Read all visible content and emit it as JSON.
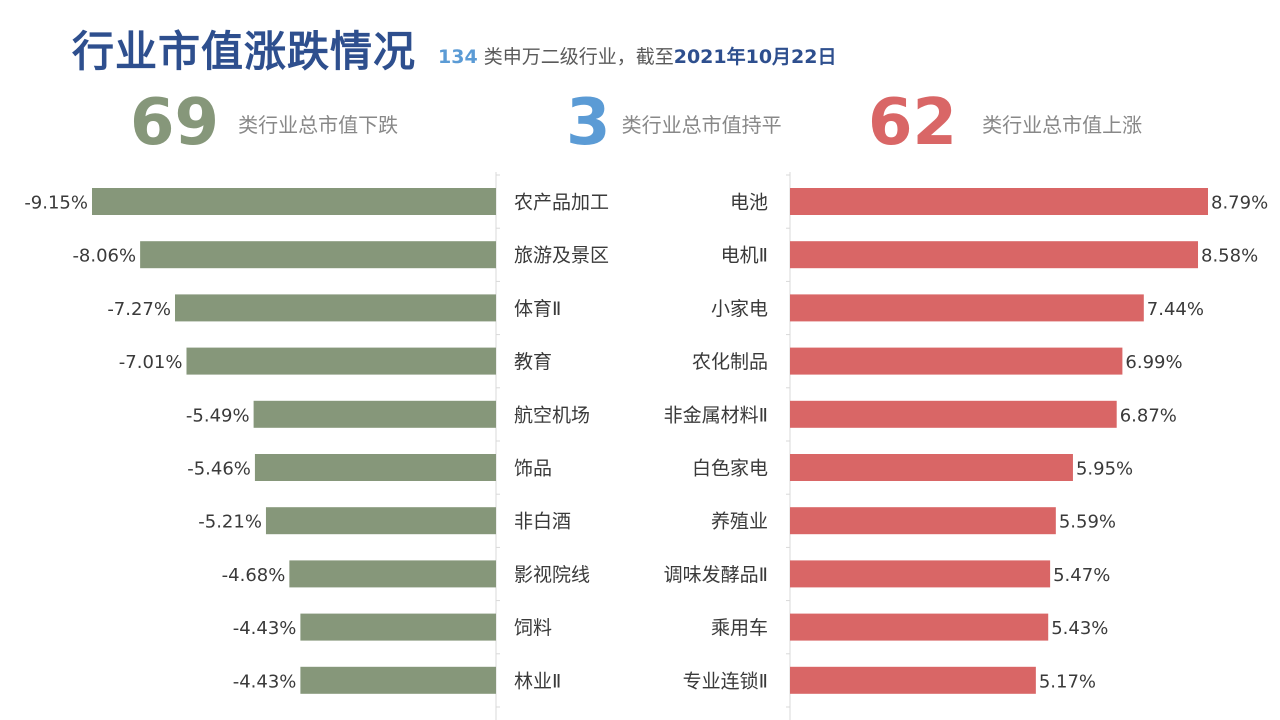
{
  "header": {
    "title": "行业市值涨跌情况",
    "subtitle_count": "134",
    "subtitle_mid": " 类申万二级行业，截至",
    "subtitle_date": "2021年10月22日"
  },
  "stats": {
    "down": {
      "number": "69",
      "label": "类行业总市值下跌",
      "color": "#86977A"
    },
    "flat": {
      "number": "3",
      "label": "类行业总市值持平",
      "color": "#5B9BD5"
    },
    "up": {
      "number": "62",
      "label": "类行业总市值上涨",
      "color": "#D96666"
    }
  },
  "colors": {
    "decline_bar": "#86977A",
    "rise_bar": "#D96666",
    "label_text": "#3a3a3a",
    "axis_line": "#d9d9d9"
  },
  "chart_data": [
    {
      "type": "bar",
      "orientation": "horizontal",
      "name": "",
      "categories": [
        "农产品加工",
        "旅游及景区",
        "体育Ⅱ",
        "教育",
        "航空机场",
        "饰品",
        "非白酒",
        "影视院线",
        "饲料",
        "林业Ⅱ"
      ],
      "values": [
        -9.15,
        -8.06,
        -7.27,
        -7.01,
        -5.49,
        -5.46,
        -5.21,
        -4.68,
        -4.43,
        -4.43
      ],
      "value_labels": [
        "-9.15%",
        "-8.06%",
        "-7.27%",
        "-7.01%",
        "-5.49%",
        "-5.46%",
        "-5.21%",
        "-4.68%",
        "-4.43%",
        "-4.43%"
      ],
      "unit": "%",
      "xlim": [
        -9.15,
        0
      ]
    },
    {
      "type": "bar",
      "orientation": "horizontal",
      "name": "",
      "categories": [
        "电池",
        "电机Ⅱ",
        "小家电",
        "农化制品",
        "非金属材料Ⅱ",
        "白色家电",
        "养殖业",
        "调味发酵品Ⅱ",
        "乘用车",
        "专业连锁Ⅱ"
      ],
      "values": [
        8.79,
        8.58,
        7.44,
        6.99,
        6.87,
        5.95,
        5.59,
        5.47,
        5.43,
        5.17
      ],
      "value_labels": [
        "8.79%",
        "8.58%",
        "7.44%",
        "6.99%",
        "6.87%",
        "5.95%",
        "5.59%",
        "5.47%",
        "5.43%",
        "5.17%"
      ],
      "unit": "%",
      "xlim": [
        0,
        8.79
      ]
    }
  ]
}
